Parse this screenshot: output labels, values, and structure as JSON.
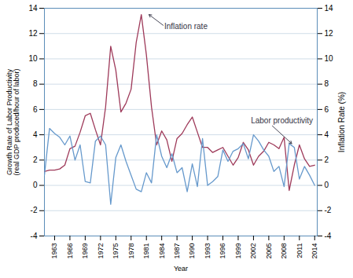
{
  "chart_data": {
    "type": "line",
    "x": [
      1961,
      1962,
      1963,
      1964,
      1965,
      1966,
      1967,
      1968,
      1969,
      1970,
      1971,
      1972,
      1973,
      1974,
      1975,
      1976,
      1977,
      1978,
      1979,
      1980,
      1981,
      1982,
      1983,
      1984,
      1985,
      1986,
      1987,
      1988,
      1989,
      1990,
      1991,
      1992,
      1993,
      1994,
      1995,
      1996,
      1997,
      1998,
      1999,
      2000,
      2001,
      2002,
      2003,
      2004,
      2005,
      2006,
      2007,
      2008,
      2009,
      2010,
      2011,
      2012,
      2013,
      2014
    ],
    "series": [
      {
        "name": "Inflation rate",
        "color": "#9e3a5a",
        "values": [
          1.1,
          1.2,
          1.2,
          1.3,
          1.6,
          2.9,
          3.1,
          4.2,
          5.5,
          5.7,
          4.4,
          3.2,
          6.2,
          11.0,
          9.1,
          5.8,
          6.5,
          7.6,
          11.3,
          13.5,
          10.3,
          6.2,
          3.2,
          4.3,
          3.6,
          1.9,
          3.7,
          4.1,
          4.8,
          5.4,
          4.2,
          3.0,
          3.0,
          2.6,
          2.8,
          3.0,
          2.3,
          1.6,
          2.2,
          3.4,
          2.8,
          1.6,
          2.3,
          2.7,
          3.4,
          3.2,
          2.9,
          3.8,
          -0.4,
          1.6,
          3.2,
          2.1,
          1.5,
          1.6
        ]
      },
      {
        "name": "Labor productivity",
        "color": "#6699cc",
        "values": [
          0.8,
          4.5,
          4.1,
          3.8,
          3.2,
          3.9,
          2.0,
          3.2,
          0.3,
          0.2,
          3.5,
          3.9,
          3.2,
          -1.5,
          2.2,
          3.2,
          1.9,
          0.8,
          -0.3,
          -0.5,
          1.0,
          0.2,
          4.0,
          2.3,
          1.4,
          2.5,
          1.0,
          1.4,
          -0.5,
          1.7,
          -0.1,
          3.7,
          0.0,
          0.3,
          0.7,
          2.8,
          1.9,
          2.7,
          2.9,
          3.3,
          2.1,
          4.0,
          3.5,
          2.8,
          2.3,
          1.1,
          1.5,
          -0.1,
          3.3,
          3.0,
          0.5,
          1.5,
          0.8,
          0.0
        ]
      }
    ],
    "xlabel": "Year",
    "ylabel": "Growth Rate of Labor Productivity\n(real GDP produced/hour of labor)",
    "y2label": "Inflation Rate (%)",
    "xlim": [
      1961,
      2014.5
    ],
    "xticks": [
      1963,
      1966,
      1969,
      1972,
      1975,
      1978,
      1981,
      1984,
      1987,
      1990,
      1993,
      1996,
      1999,
      2002,
      2005,
      2008,
      2011,
      2014
    ],
    "ylim": [
      -4,
      14
    ],
    "yticks": [
      -4,
      -2,
      0,
      2,
      4,
      6,
      8,
      10,
      12,
      14
    ],
    "y2lim": [
      -4,
      14
    ],
    "y2ticks": [
      -4,
      -2,
      0,
      2,
      4,
      6,
      8,
      10,
      12,
      14
    ],
    "grid": true,
    "annotations": [
      {
        "text": "Inflation rate",
        "x": 1981.5,
        "y": 13.5
      },
      {
        "text": "Labor productivity",
        "x": 2009.5,
        "y": 3.3
      }
    ]
  }
}
